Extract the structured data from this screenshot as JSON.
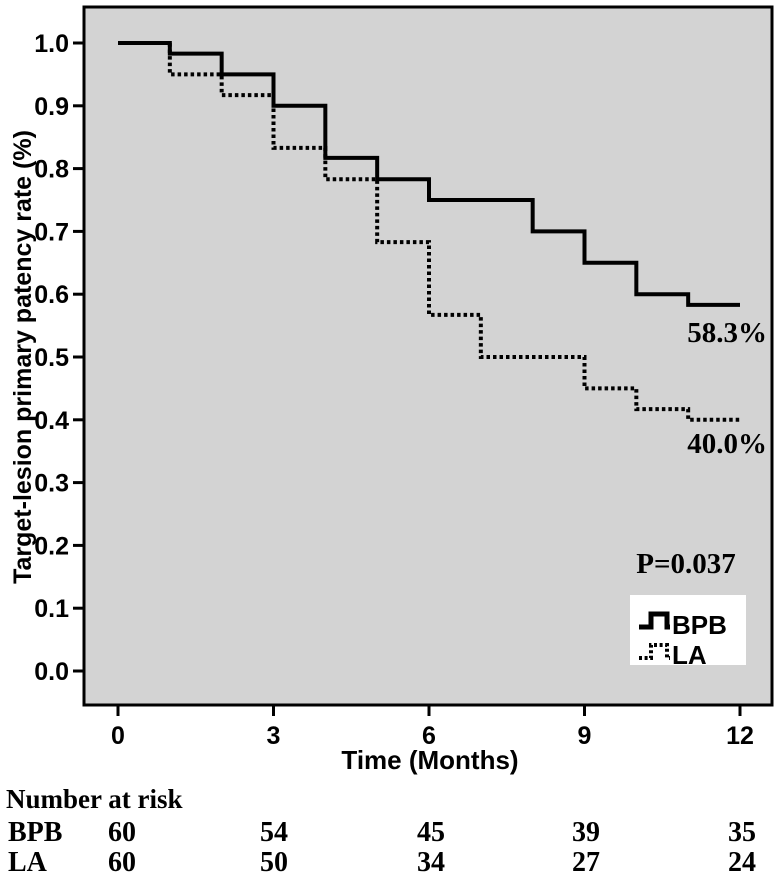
{
  "figure": {
    "background": "#ffffff",
    "plot_bg": "#d3d3d3",
    "line_color": "#000000",
    "legend_bg": "#ffffff"
  },
  "chart_data": {
    "type": "line",
    "subtype": "kaplan-meier-step",
    "title": "",
    "xlabel": "Time (Months)",
    "ylabel": "Target-lesion primary patency rate (%)",
    "xlim": [
      0,
      12
    ],
    "ylim": [
      0,
      1.05
    ],
    "xticks": [
      0,
      3,
      6,
      9,
      12
    ],
    "yticks": [
      "1.0",
      "0.9",
      "0.8",
      "0.7",
      "0.6",
      "0.5",
      "0.4",
      "0.3",
      "0.2",
      "0.1",
      "0.0"
    ],
    "grid": false,
    "legend_position": "bottom-right",
    "series": [
      {
        "name": "BPB",
        "line_style": "solid",
        "color": "#000000",
        "steps": [
          [
            0,
            1.0
          ],
          [
            1,
            0.983
          ],
          [
            2,
            0.95
          ],
          [
            3,
            0.9
          ],
          [
            4,
            0.817
          ],
          [
            5,
            0.783
          ],
          [
            6,
            0.75
          ],
          [
            8,
            0.7
          ],
          [
            9,
            0.65
          ],
          [
            10,
            0.6
          ],
          [
            11,
            0.583
          ],
          [
            12,
            0.583
          ]
        ]
      },
      {
        "name": "LA",
        "line_style": "dotted",
        "color": "#000000",
        "steps": [
          [
            0,
            1.0
          ],
          [
            1,
            0.95
          ],
          [
            2,
            0.917
          ],
          [
            3,
            0.833
          ],
          [
            4,
            0.783
          ],
          [
            5,
            0.683
          ],
          [
            6,
            0.567
          ],
          [
            7,
            0.5
          ],
          [
            9,
            0.45
          ],
          [
            10,
            0.417
          ],
          [
            11,
            0.4
          ],
          [
            12,
            0.4
          ]
        ]
      }
    ],
    "annotations": [
      {
        "id": "bpb-end-label",
        "text": "58.3%"
      },
      {
        "id": "la-end-label",
        "text": "40.0%"
      },
      {
        "id": "p-value-label",
        "text": "P=0.037"
      }
    ],
    "legend": {
      "items": [
        {
          "label": "BPB",
          "line_style": "solid"
        },
        {
          "label": "LA",
          "line_style": "dotted"
        }
      ]
    }
  },
  "risk_table": {
    "title": "Number at risk",
    "time_points": [
      0,
      3,
      6,
      9,
      12
    ],
    "rows": [
      {
        "label": "BPB",
        "values": [
          "60",
          "54",
          "45",
          "39",
          "35"
        ]
      },
      {
        "label": "LA",
        "values": [
          "60",
          "50",
          "34",
          "27",
          "24"
        ]
      }
    ]
  }
}
